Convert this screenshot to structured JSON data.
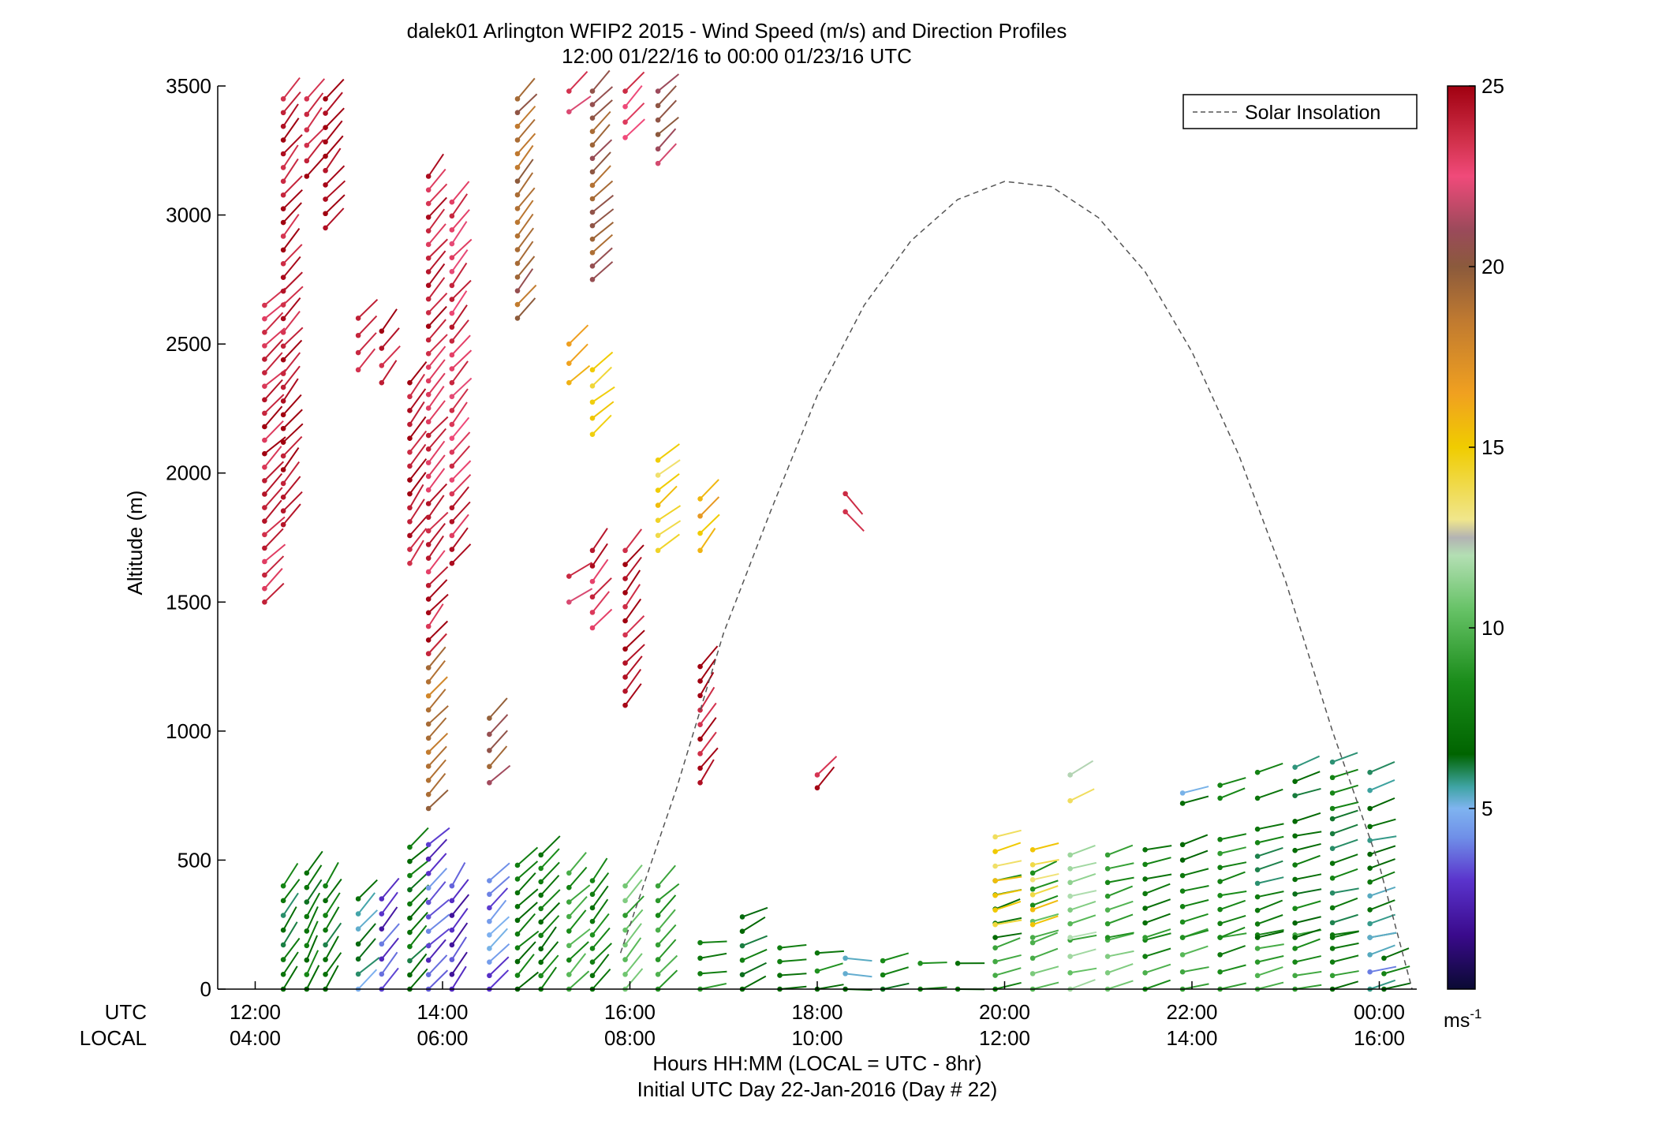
{
  "chart_data": {
    "type": "scatter",
    "title_line1": "dalek01 Arlington WFIP2 2015 - Wind Speed (m/s) and Direction Profiles",
    "title_line2": "12:00 01/22/16 to 00:00 01/23/16  UTC",
    "ylabel": "Altitude (m)",
    "xlabel": "Hours HH:MM  (LOCAL = UTC - 8hr)",
    "xlabel2": "Initial UTC Day 22-Jan-2016 (Day # 22)",
    "utc_row_label": "UTC",
    "local_row_label": "LOCAL",
    "xlim": [
      11.6,
      24.4
    ],
    "ylim": [
      0,
      3500
    ],
    "yticks": [
      0,
      500,
      1000,
      1500,
      2000,
      2500,
      3000,
      3500
    ],
    "xticks": [
      12,
      14,
      16,
      18,
      20,
      22,
      24
    ],
    "utc_tick_labels": [
      "12:00",
      "14:00",
      "16:00",
      "18:00",
      "20:00",
      "22:00",
      "00:00"
    ],
    "local_tick_labels": [
      "04:00",
      "06:00",
      "08:00",
      "10:00",
      "12:00",
      "14:00",
      "16:00"
    ],
    "legend": {
      "label": "Solar Insolation",
      "position": "top-right",
      "style": "dashed",
      "color": "#555555"
    },
    "solar_insolation": {
      "x": [
        15.9,
        16.5,
        17.0,
        17.5,
        18.0,
        18.5,
        19.0,
        19.5,
        20.0,
        20.5,
        21.0,
        21.5,
        22.0,
        22.5,
        23.0,
        23.5,
        24.0,
        24.35
      ],
      "y": [
        140,
        780,
        1380,
        1850,
        2300,
        2650,
        2900,
        3060,
        3130,
        3110,
        2990,
        2780,
        2470,
        2070,
        1580,
        1000,
        480,
        0
      ]
    },
    "colorbar": {
      "range": [
        0,
        25
      ],
      "ticks": [
        5,
        10,
        15,
        20,
        25
      ],
      "unit_label": "ms",
      "unit_exponent": "-1",
      "stops": [
        {
          "v": 0,
          "c": "#0a0a33"
        },
        {
          "v": 1.5,
          "c": "#3a0a8c"
        },
        {
          "v": 3,
          "c": "#5a33cc"
        },
        {
          "v": 4.2,
          "c": "#6f8fe8"
        },
        {
          "v": 5,
          "c": "#7fb4f0"
        },
        {
          "v": 5.6,
          "c": "#3fa4a4"
        },
        {
          "v": 6.5,
          "c": "#006400"
        },
        {
          "v": 8.5,
          "c": "#1a8c1a"
        },
        {
          "v": 10.5,
          "c": "#66c266"
        },
        {
          "v": 12,
          "c": "#b3dfb3"
        },
        {
          "v": 12.5,
          "c": "#b3b3b3"
        },
        {
          "v": 13,
          "c": "#f0e68c"
        },
        {
          "v": 15,
          "c": "#f0cc00"
        },
        {
          "v": 16.5,
          "c": "#f0a020"
        },
        {
          "v": 18.5,
          "c": "#c07a30"
        },
        {
          "v": 20,
          "c": "#8b5a3c"
        },
        {
          "v": 21,
          "c": "#9a4a5a"
        },
        {
          "v": 22.5,
          "c": "#f04a7a"
        },
        {
          "v": 23.5,
          "c": "#d0304a"
        },
        {
          "v": 25,
          "c": "#a00010"
        }
      ]
    },
    "profiles": [
      {
        "x": 12.1,
        "segments": [
          [
            1500,
            2650,
            24,
            225
          ]
        ]
      },
      {
        "x": 12.3,
        "segments": [
          [
            0,
            400,
            7,
            215
          ],
          [
            1800,
            3450,
            24.5,
            220
          ]
        ]
      },
      {
        "x": 12.55,
        "segments": [
          [
            0,
            450,
            7.5,
            210
          ],
          [
            3150,
            3450,
            24.5,
            220
          ]
        ]
      },
      {
        "x": 12.75,
        "segments": [
          [
            0,
            400,
            7,
            210
          ],
          [
            2950,
            3450,
            24.5,
            220
          ]
        ]
      },
      {
        "x": 13.1,
        "segments": [
          [
            0,
            350,
            6,
            225
          ],
          [
            2400,
            2600,
            24.5,
            220
          ]
        ]
      },
      {
        "x": 13.35,
        "segments": [
          [
            0,
            350,
            3,
            220
          ],
          [
            2350,
            2550,
            24.5,
            220
          ]
        ]
      },
      {
        "x": 13.65,
        "segments": [
          [
            0,
            550,
            7,
            225
          ],
          [
            1650,
            2350,
            24.5,
            215
          ]
        ]
      },
      {
        "x": 13.85,
        "segments": [
          [
            0,
            560,
            3.5,
            225
          ],
          [
            700,
            1300,
            19,
            225
          ],
          [
            1300,
            3150,
            24,
            220
          ]
        ]
      },
      {
        "x": 14.1,
        "segments": [
          [
            0,
            400,
            3,
            215
          ],
          [
            1650,
            3050,
            23.5,
            220
          ]
        ]
      },
      {
        "x": 14.5,
        "segments": [
          [
            0,
            420,
            4,
            225
          ],
          [
            800,
            1050,
            20,
            225
          ]
        ]
      },
      {
        "x": 14.8,
        "segments": [
          [
            0,
            480,
            7,
            225
          ],
          [
            2600,
            3450,
            19.5,
            220
          ]
        ]
      },
      {
        "x": 15.05,
        "segments": [
          [
            0,
            520,
            7.5,
            220
          ]
        ]
      },
      {
        "x": 15.35,
        "segments": [
          [
            0,
            450,
            9,
            225
          ],
          [
            1500,
            1600,
            23,
            235
          ],
          [
            2350,
            2500,
            16,
            230
          ],
          [
            3400,
            3480,
            23,
            230
          ]
        ]
      },
      {
        "x": 15.6,
        "segments": [
          [
            0,
            420,
            8,
            220
          ],
          [
            1400,
            1700,
            23.5,
            220
          ],
          [
            2150,
            2400,
            15,
            230
          ],
          [
            2750,
            3480,
            20,
            225
          ]
        ]
      },
      {
        "x": 15.95,
        "segments": [
          [
            0,
            400,
            10,
            220
          ],
          [
            1100,
            1700,
            24.5,
            220
          ],
          [
            3300,
            3480,
            23,
            225
          ]
        ]
      },
      {
        "x": 16.3,
        "segments": [
          [
            0,
            400,
            9.5,
            225
          ],
          [
            1700,
            2050,
            14.5,
            230
          ],
          [
            3200,
            3480,
            21,
            225
          ]
        ]
      },
      {
        "x": 16.75,
        "segments": [
          [
            0,
            180,
            8,
            265
          ],
          [
            800,
            1250,
            24.5,
            215
          ],
          [
            1700,
            1900,
            16,
            220
          ]
        ]
      },
      {
        "x": 17.2,
        "segments": [
          [
            0,
            280,
            7,
            245
          ]
        ]
      },
      {
        "x": 17.6,
        "segments": [
          [
            0,
            160,
            7,
            260
          ]
        ]
      },
      {
        "x": 18.0,
        "segments": [
          [
            0,
            140,
            7.5,
            260
          ],
          [
            780,
            830,
            24.5,
            225
          ]
        ]
      },
      {
        "x": 18.3,
        "segments": [
          [
            0,
            120,
            6,
            270
          ],
          [
            1850,
            1920,
            24.5,
            320
          ]
        ]
      },
      {
        "x": 18.7,
        "segments": [
          [
            0,
            110,
            7.5,
            260
          ]
        ]
      },
      {
        "x": 19.1,
        "segments": [
          [
            0,
            100,
            7.5,
            270
          ]
        ]
      },
      {
        "x": 19.5,
        "segments": [
          [
            0,
            100,
            7,
            265
          ]
        ]
      },
      {
        "x": 19.9,
        "segments": [
          [
            0,
            160,
            8.5,
            255
          ],
          [
            200,
            420,
            8,
            255
          ],
          [
            250,
            590,
            14.5,
            255
          ]
        ]
      },
      {
        "x": 20.3,
        "segments": [
          [
            0,
            180,
            10,
            255
          ],
          [
            200,
            450,
            9.5,
            250
          ],
          [
            250,
            540,
            14.5,
            255
          ]
        ]
      },
      {
        "x": 20.7,
        "segments": [
          [
            0,
            190,
            10.5,
            255
          ],
          [
            200,
            520,
            11,
            255
          ],
          [
            730,
            830,
            13,
            240
          ]
        ]
      },
      {
        "x": 21.1,
        "segments": [
          [
            0,
            190,
            10,
            255
          ],
          [
            200,
            520,
            9,
            255
          ]
        ]
      },
      {
        "x": 21.5,
        "segments": [
          [
            0,
            190,
            9,
            255
          ],
          [
            200,
            540,
            8,
            255
          ]
        ]
      },
      {
        "x": 21.9,
        "segments": [
          [
            0,
            200,
            9,
            255
          ],
          [
            200,
            560,
            7.5,
            255
          ],
          [
            720,
            760,
            6,
            260
          ]
        ]
      },
      {
        "x": 22.3,
        "segments": [
          [
            0,
            200,
            8.5,
            255
          ],
          [
            200,
            580,
            8,
            255
          ],
          [
            740,
            790,
            7.5,
            255
          ]
        ]
      },
      {
        "x": 22.7,
        "segments": [
          [
            0,
            210,
            9,
            255
          ],
          [
            200,
            620,
            7,
            255
          ],
          [
            740,
            840,
            7,
            250
          ]
        ]
      },
      {
        "x": 23.1,
        "segments": [
          [
            0,
            210,
            9,
            255
          ],
          [
            200,
            650,
            7.5,
            255
          ],
          [
            750,
            860,
            7,
            250
          ]
        ]
      },
      {
        "x": 23.5,
        "segments": [
          [
            0,
            210,
            8,
            260
          ],
          [
            200,
            660,
            7,
            255
          ],
          [
            700,
            880,
            7,
            250
          ]
        ]
      },
      {
        "x": 23.9,
        "segments": [
          [
            0,
            200,
            5,
            255
          ],
          [
            200,
            630,
            6.5,
            255
          ],
          [
            700,
            840,
            6,
            250
          ]
        ]
      },
      {
        "x": 24.05,
        "segments": [
          [
            0,
            120,
            7.5,
            255
          ]
        ]
      }
    ]
  }
}
